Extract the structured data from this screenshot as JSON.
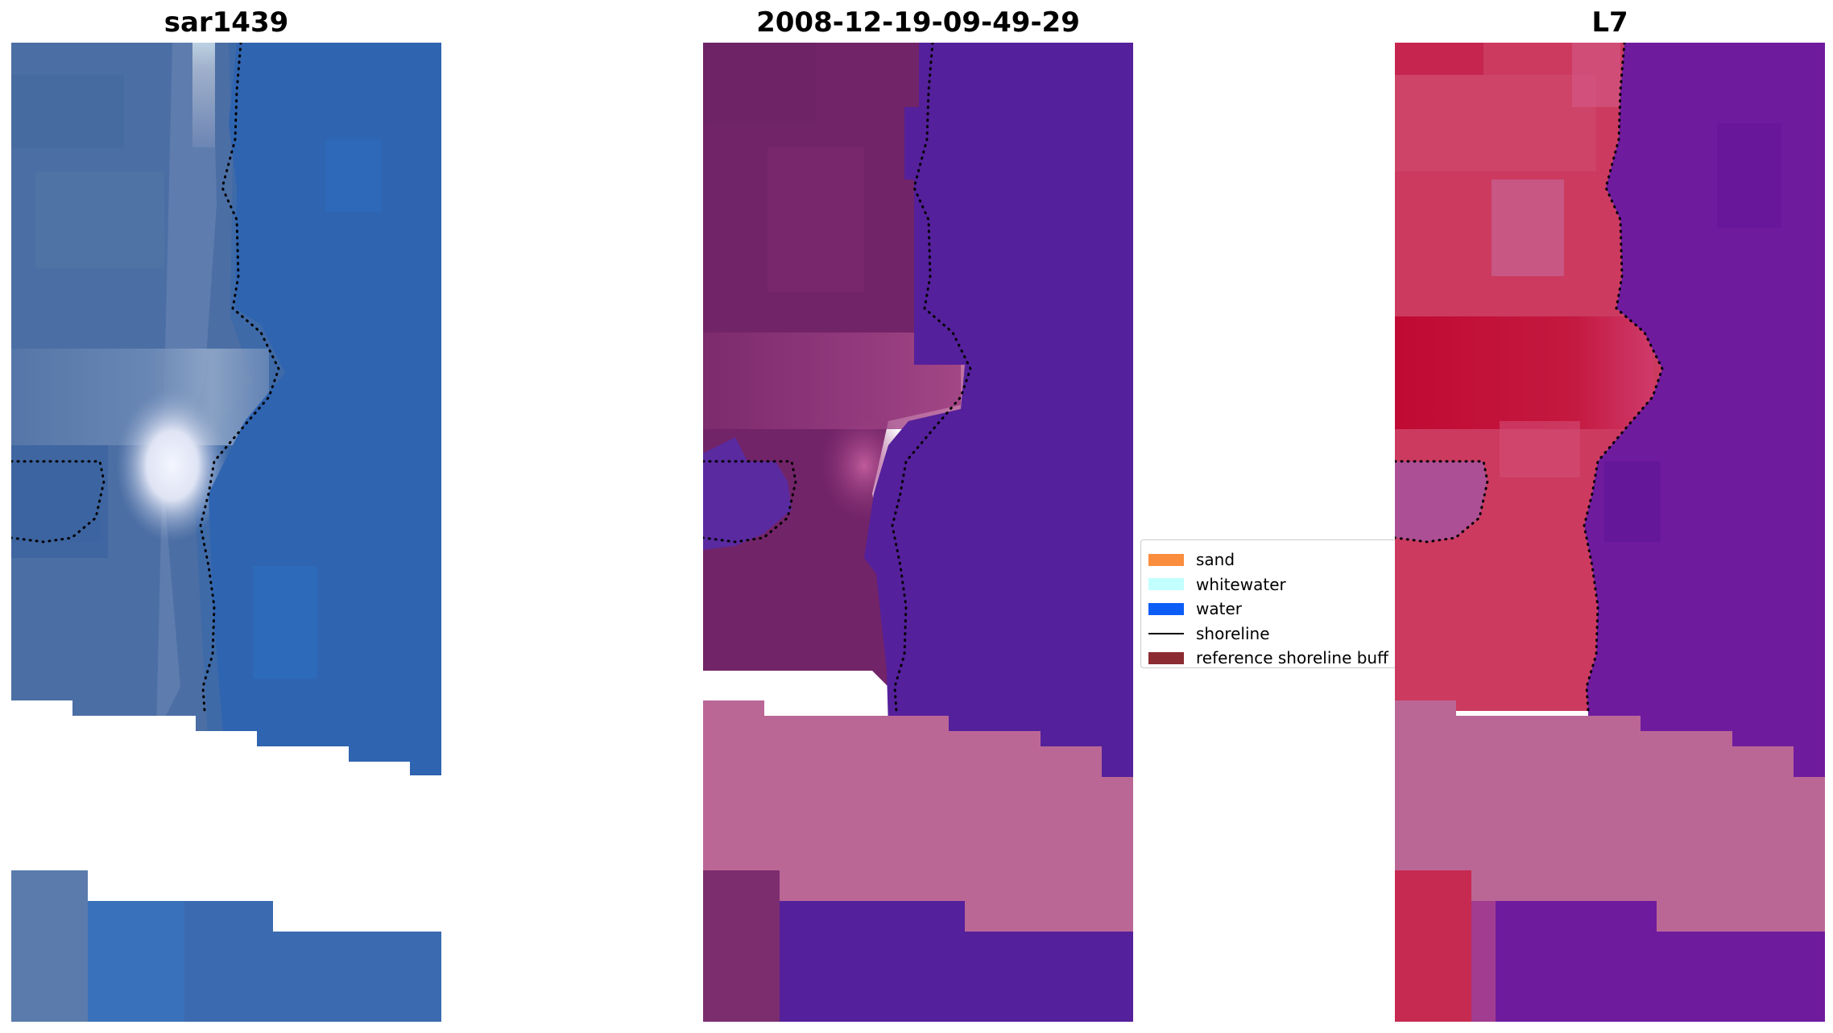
{
  "panels": {
    "left": {
      "title": "sar1439"
    },
    "middle": {
      "title": "2008-12-19-09-49-29"
    },
    "right": {
      "title": "L7"
    }
  },
  "legend": {
    "items": [
      {
        "label": "sand",
        "color": "#fb8d3e",
        "kind": "patch"
      },
      {
        "label": "whitewater",
        "color": "#c2ffff",
        "kind": "patch"
      },
      {
        "label": "water",
        "color": "#0b5df5",
        "kind": "patch"
      },
      {
        "label": "shoreline",
        "color": "#000000",
        "kind": "line"
      },
      {
        "label": "reference shoreline buff",
        "color": "#8c2b32",
        "kind": "patch"
      }
    ]
  },
  "colors": {
    "rgb_water": "#2f62ad",
    "rgb_land": "#4d6ea2",
    "rgb_bright": "#e6ecf6",
    "classified_water": "#55219a",
    "classified_land": "#712569",
    "buffer_mask": "#bb6796",
    "ndwi_land": "#cc3056",
    "ndwi_water": "#6e1a9e",
    "shoreline_dots": "#000000"
  }
}
